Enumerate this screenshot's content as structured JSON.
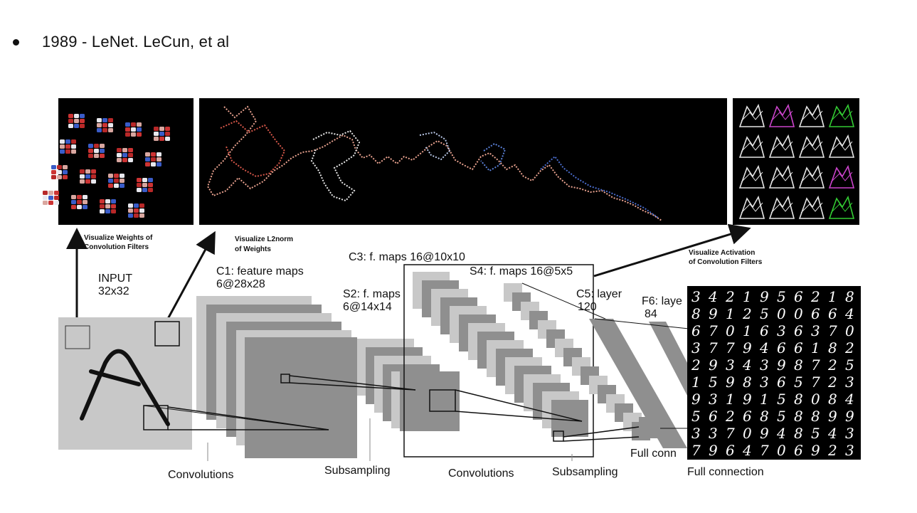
{
  "bullet": {
    "text": "1989 - LeNet. LeCun, et al"
  },
  "annotations": {
    "weights": [
      "Visualize Weights of",
      "Convolution Filters"
    ],
    "l2norm": [
      "Visualize L2norm",
      "of Weights"
    ],
    "activation": [
      "Visualize Activation",
      "of Convolution Filters"
    ]
  },
  "layers": {
    "input": [
      "INPUT",
      "32x32"
    ],
    "c1": [
      "C1: feature maps",
      "6@28x28"
    ],
    "s2": [
      "S2: f. maps",
      "6@14x14"
    ],
    "c3": "C3: f. maps 16@10x10",
    "s4": "S4: f. maps 16@5x5",
    "c5": [
      "C5: layer",
      "120"
    ],
    "f6": [
      "F6: laye",
      "84"
    ],
    "full_conn": "Full conn"
  },
  "operations": {
    "conv1": "Convolutions",
    "sub1": "Subsampling",
    "conv2": "Convolutions",
    "sub2": "Subsampling",
    "full": "Full connection"
  },
  "digits_grid": [
    "3421956218",
    "8912500664",
    "6701636370",
    "3779466182",
    "2934398725",
    "1598365723",
    "9319158084",
    "5626858899",
    "3370948543",
    "7964706923"
  ],
  "colors": {
    "accent_activation": "#cc44cc",
    "accent_green": "#33cc33"
  }
}
